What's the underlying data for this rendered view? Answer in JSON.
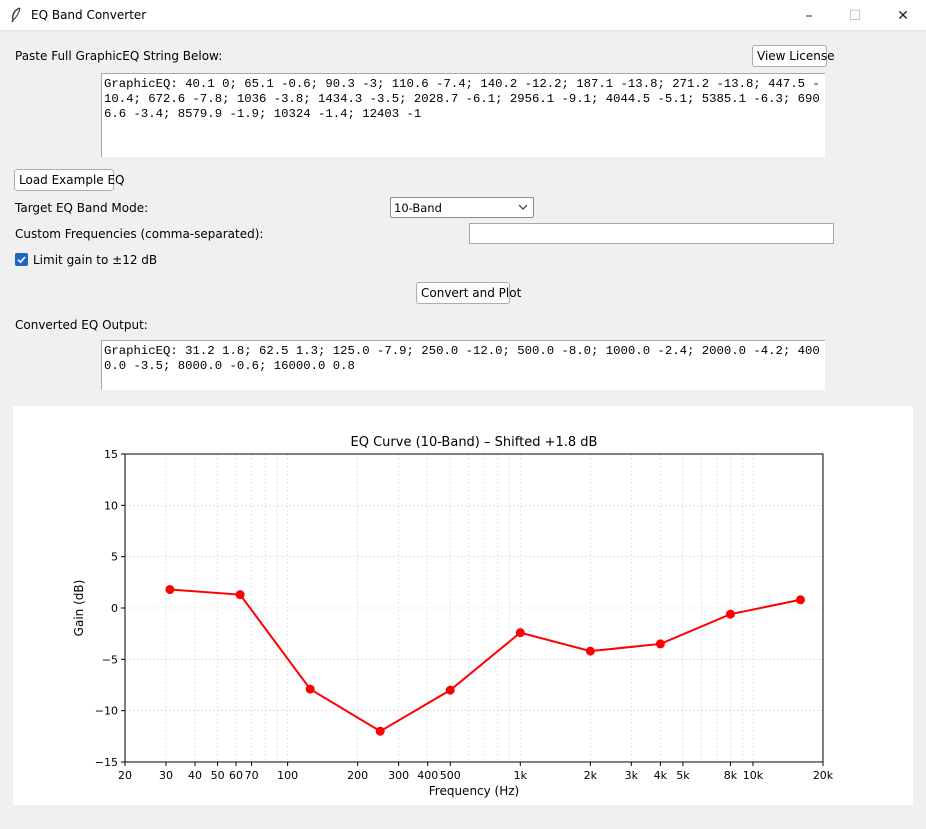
{
  "window": {
    "title": "EQ Band Converter",
    "controls": {
      "minimize": "–",
      "maximize": "☐",
      "close": "✕"
    }
  },
  "input_section": {
    "label": "Paste Full GraphicEQ String Below:",
    "license_button": "View License",
    "text": "GraphicEQ: 40.1 0; 65.1 -0.6; 90.3 -3; 110.6 -7.4; 140.2 -12.2; 187.1 -13.8; 271.2 -13.8; 447.5 -10.4; 672.6 -7.8; 1036 -3.8; 1434.3 -3.5; 2028.7 -6.1; 2956.1 -9.1; 4044.5 -5.1; 5385.1 -6.3; 6906.6 -3.4; 8579.9 -1.9; 10324 -1.4; 12403 -1"
  },
  "controls": {
    "load_example_button": "Load Example EQ",
    "band_mode_label": "Target EQ Band Mode:",
    "band_mode_value": "10-Band",
    "custom_freq_label": "Custom Frequencies (comma-separated):",
    "custom_freq_value": "",
    "limit_gain_label": "Limit gain to ±12 dB",
    "limit_gain_checked": true,
    "convert_button": "Convert and Plot"
  },
  "output_section": {
    "label": "Converted EQ Output:",
    "text": "GraphicEQ: 31.2 1.8; 62.5 1.3; 125.0 -7.9; 250.0 -12.0; 500.0 -8.0; 1000.0 -2.4; 2000.0 -4.2; 4000.0 -3.5; 8000.0 -0.6; 16000.0 0.8"
  },
  "chart_data": {
    "type": "line",
    "title": "EQ Curve (10-Band) – Shifted +1.8 dB",
    "xlabel": "Frequency (Hz)",
    "ylabel": "Gain (dB)",
    "x_scale": "log",
    "xlim": [
      20,
      20000
    ],
    "ylim": [
      -15,
      15
    ],
    "grid": true,
    "line_color": "#ff0000",
    "x_ticks": [
      {
        "value": 20,
        "label": "20"
      },
      {
        "value": 30,
        "label": "30"
      },
      {
        "value": 40,
        "label": "40"
      },
      {
        "value": 50,
        "label": "50"
      },
      {
        "value": 60,
        "label": "60"
      },
      {
        "value": 70,
        "label": "70"
      },
      {
        "value": 100,
        "label": "100"
      },
      {
        "value": 200,
        "label": "200"
      },
      {
        "value": 300,
        "label": "300"
      },
      {
        "value": 400,
        "label": "400"
      },
      {
        "value": 500,
        "label": "500"
      },
      {
        "value": 1000,
        "label": "1k"
      },
      {
        "value": 2000,
        "label": "2k"
      },
      {
        "value": 3000,
        "label": "3k"
      },
      {
        "value": 4000,
        "label": "4k"
      },
      {
        "value": 5000,
        "label": "5k"
      },
      {
        "value": 8000,
        "label": "8k"
      },
      {
        "value": 10000,
        "label": "10k"
      },
      {
        "value": 20000,
        "label": "20k"
      }
    ],
    "y_ticks": [
      15,
      10,
      5,
      0,
      -5,
      -10,
      -15
    ],
    "x": [
      31.2,
      62.5,
      125.0,
      250.0,
      500.0,
      1000.0,
      2000.0,
      4000.0,
      8000.0,
      16000.0
    ],
    "y": [
      1.8,
      1.3,
      -7.9,
      -12.0,
      -8.0,
      -2.4,
      -4.2,
      -3.5,
      -0.6,
      0.8
    ]
  }
}
